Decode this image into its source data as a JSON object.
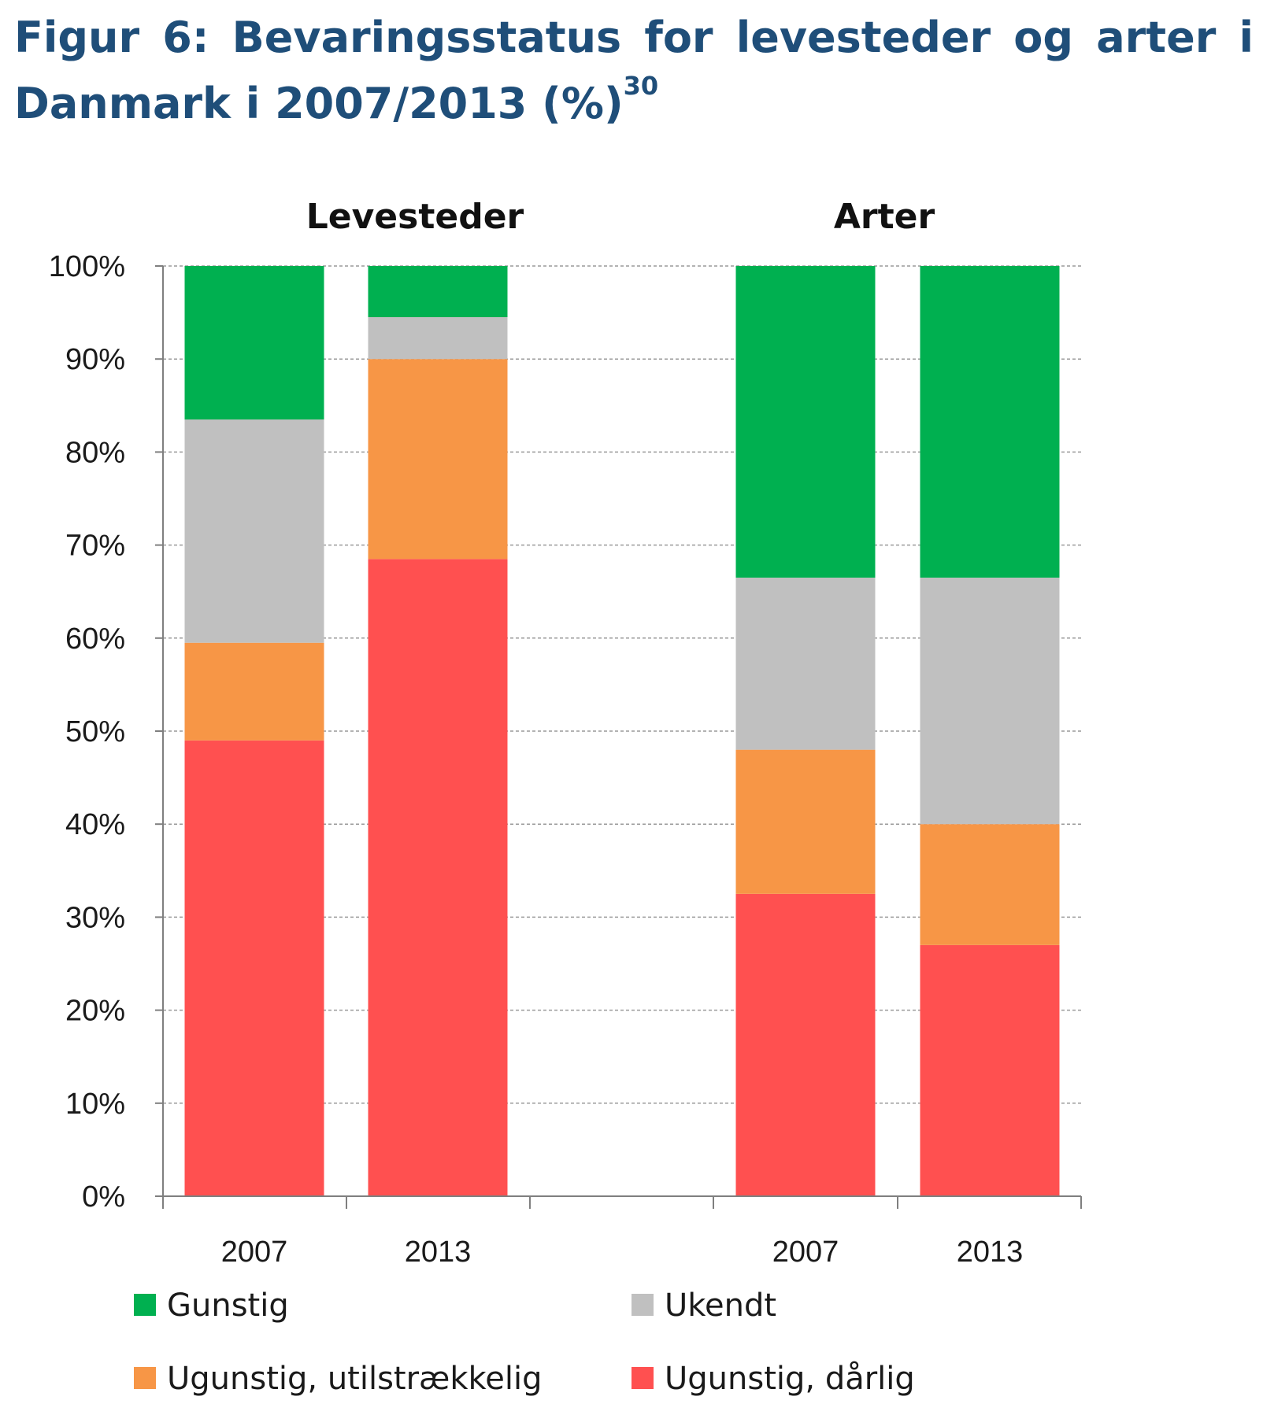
{
  "title": {
    "text": "Figur 6: Bevaringsstatus for levesteder og arter i Danmark i 2007/2013 (%)",
    "footnote": "30"
  },
  "chart_data": {
    "type": "bar",
    "stacked": true,
    "groups": [
      {
        "name": "Levesteder",
        "categories": [
          "2007",
          "2013"
        ]
      },
      {
        "name": "Arter",
        "categories": [
          "2007",
          "2013"
        ]
      }
    ],
    "categories": [
      "2007",
      "2013",
      "2007",
      "2013"
    ],
    "series": [
      {
        "name": "Ugunstig, dårlig",
        "color": "#ff5050",
        "values": [
          49,
          68.5,
          32.5,
          27
        ]
      },
      {
        "name": "Ugunstig, utilstrækkelig",
        "color": "#f79646",
        "values": [
          10.5,
          21.5,
          15.5,
          13
        ]
      },
      {
        "name": "Ukendt",
        "color": "#c0c0c0",
        "values": [
          24,
          4.5,
          18.5,
          26.5
        ]
      },
      {
        "name": "Gunstig",
        "color": "#00b050",
        "values": [
          16.5,
          5.5,
          33.5,
          33.5
        ]
      }
    ],
    "ylim": [
      0,
      100
    ],
    "yticks": [
      "0%",
      "10%",
      "20%",
      "30%",
      "40%",
      "50%",
      "60%",
      "70%",
      "80%",
      "90%",
      "100%"
    ],
    "grid": true,
    "legend": {
      "position": "bottom",
      "order": [
        "Gunstig",
        "Ukendt",
        "Ugunstig, utilstrækkelig",
        "Ugunstig, dårlig"
      ]
    }
  }
}
